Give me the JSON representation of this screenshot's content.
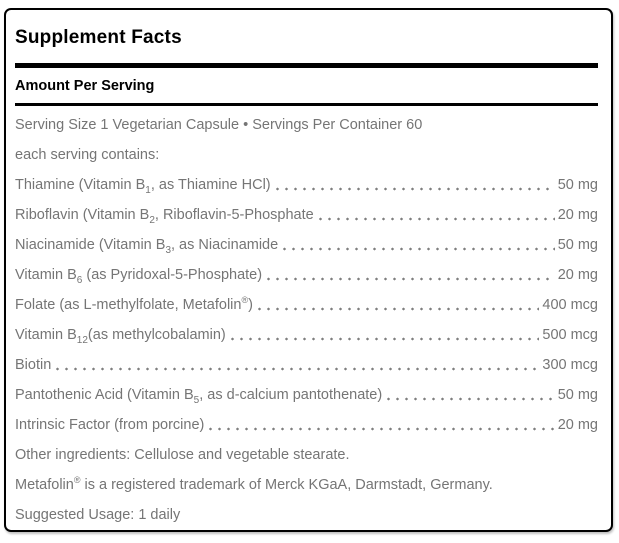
{
  "panel": {
    "title": "Supplement Facts",
    "subheader": "Amount Per Serving",
    "serving_line": "Serving Size 1 Vegetarian Capsule • Servings Per Container 60",
    "contains_line": "each serving contains:",
    "rows": [
      {
        "pre": "Thiamine (Vitamin B",
        "sub": "1",
        "post": ", as Thiamine HCl)",
        "amount": "50 mg"
      },
      {
        "pre": "Riboflavin (Vitamin B",
        "sub": "2",
        "post": ", Riboflavin-5-Phosphate",
        "amount": "20 mg"
      },
      {
        "pre": "Niacinamide (Vitamin B",
        "sub": "3",
        "post": ", as Niacinamide",
        "amount": "50 mg"
      },
      {
        "pre": "Vitamin B",
        "sub": "6",
        "post": " (as Pyridoxal-5-Phosphate)",
        "amount": "20 mg"
      },
      {
        "pre": "Folate (as L-methylfolate, Metafolin",
        "sup": "®",
        "post": ")",
        "amount": "400 mcg"
      },
      {
        "pre": "Vitamin B",
        "sub": "12",
        "post": "(as methylcobalamin)",
        "amount": "500 mcg"
      },
      {
        "pre": "Biotin",
        "amount": "300 mcg"
      },
      {
        "pre": "Pantothenic Acid (Vitamin B",
        "sub": "5",
        "post": ", as d-calcium pantothenate)",
        "amount": "50 mg"
      },
      {
        "pre": "Intrinsic Factor (from porcine)",
        "amount": "20 mg"
      }
    ],
    "other_ingredients": "Other ingredients: Cellulose and vegetable stearate.",
    "trademark": {
      "pre": "Metafolin",
      "sup": "®",
      "post": " is a registered trademark of Merck KGaA, Darmstadt, Germany."
    },
    "suggested_usage": "Suggested Usage: 1 daily",
    "colors": {
      "text_gray": "#757575",
      "heading_black": "#000000",
      "border_black": "#000000"
    }
  }
}
